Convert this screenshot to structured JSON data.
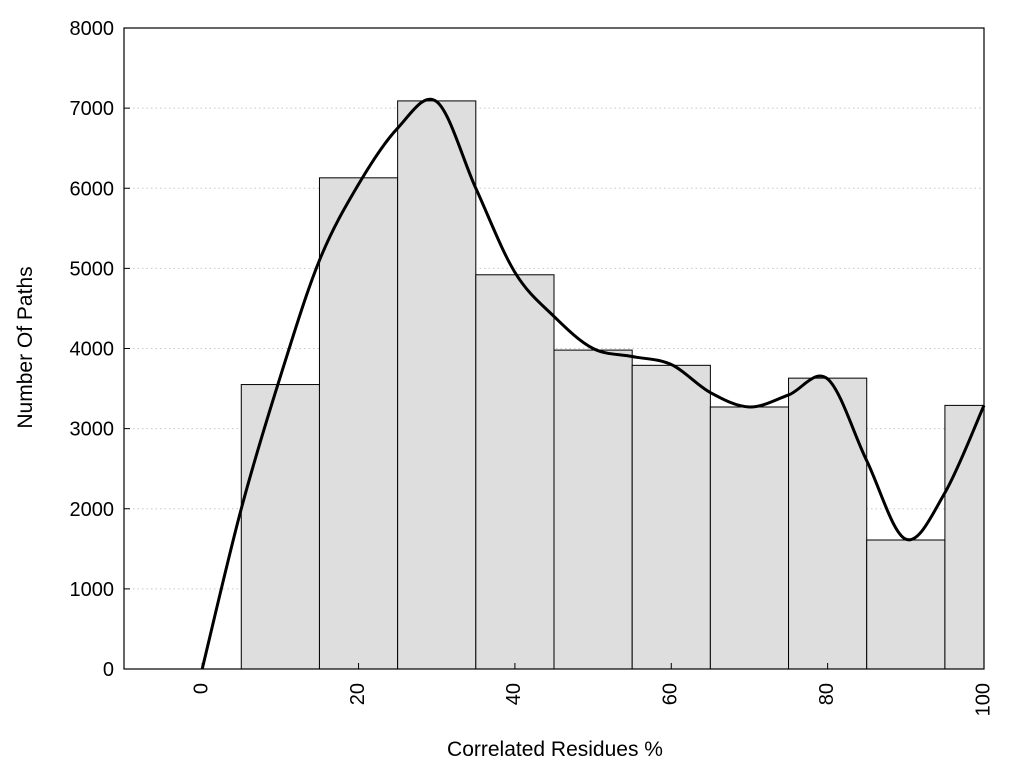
{
  "chart_data": {
    "type": "bar",
    "title": "",
    "xlabel": "Correlated Residues %",
    "ylabel": "Number Of Paths",
    "xlim": [
      -10,
      100
    ],
    "ylim": [
      0,
      8000
    ],
    "x_ticks": [
      0,
      20,
      40,
      60,
      80,
      100
    ],
    "y_ticks": [
      0,
      1000,
      2000,
      3000,
      4000,
      5000,
      6000,
      7000,
      8000
    ],
    "x_tick_labels": [
      "0",
      "20",
      "40",
      "60",
      "80",
      "100"
    ],
    "y_tick_labels": [
      "0",
      "1000",
      "2000",
      "3000",
      "4000",
      "5000",
      "6000",
      "7000",
      "8000"
    ],
    "grid": "horizontal dotted",
    "bar_width": 10,
    "bars": [
      {
        "x": 10,
        "value": 3550
      },
      {
        "x": 20,
        "value": 6130
      },
      {
        "x": 30,
        "value": 7090
      },
      {
        "x": 40,
        "value": 4920
      },
      {
        "x": 50,
        "value": 3980
      },
      {
        "x": 60,
        "value": 3790
      },
      {
        "x": 70,
        "value": 3270
      },
      {
        "x": 80,
        "value": 3630
      },
      {
        "x": 90,
        "value": 1610
      },
      {
        "x": 100,
        "value": 3290
      }
    ],
    "curve": [
      {
        "x": 0,
        "y": 0
      },
      {
        "x": 5,
        "y": 2000
      },
      {
        "x": 10,
        "y": 3650
      },
      {
        "x": 15,
        "y": 5100
      },
      {
        "x": 20,
        "y": 6050
      },
      {
        "x": 25,
        "y": 6750
      },
      {
        "x": 30,
        "y": 7080
      },
      {
        "x": 35,
        "y": 6000
      },
      {
        "x": 40,
        "y": 4950
      },
      {
        "x": 45,
        "y": 4400
      },
      {
        "x": 50,
        "y": 4000
      },
      {
        "x": 55,
        "y": 3900
      },
      {
        "x": 60,
        "y": 3800
      },
      {
        "x": 65,
        "y": 3450
      },
      {
        "x": 70,
        "y": 3270
      },
      {
        "x": 75,
        "y": 3420
      },
      {
        "x": 80,
        "y": 3620
      },
      {
        "x": 85,
        "y": 2600
      },
      {
        "x": 90,
        "y": 1620
      },
      {
        "x": 95,
        "y": 2200
      },
      {
        "x": 100,
        "y": 3290
      }
    ],
    "colors": {
      "bar_fill": "#dedede",
      "bar_stroke": "#000000",
      "curve": "#000000",
      "grid": "#c8c8c8"
    }
  }
}
